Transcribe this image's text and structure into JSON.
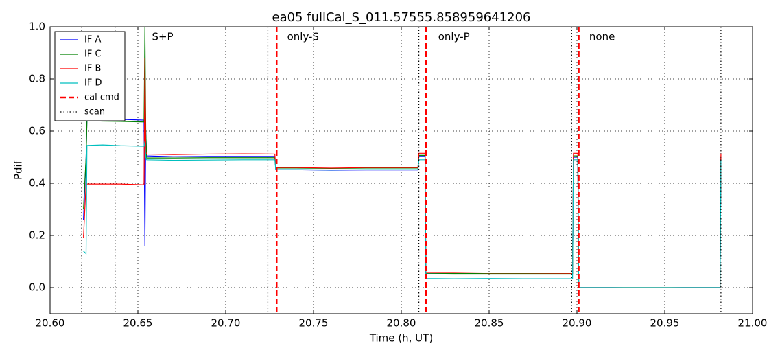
{
  "chart_data": {
    "type": "line",
    "title": "ea05 fullCal_S_011.57555.858959641206",
    "xlabel": "Time (h, UT)",
    "ylabel": "Pdif",
    "xlim": [
      20.6,
      21.0
    ],
    "ylim": [
      -0.1,
      1.0
    ],
    "xticks": [
      {
        "value": 20.6,
        "label": "20.60"
      },
      {
        "value": 20.65,
        "label": "20.65"
      },
      {
        "value": 20.7,
        "label": "20.70"
      },
      {
        "value": 20.75,
        "label": "20.75"
      },
      {
        "value": 20.8,
        "label": "20.80"
      },
      {
        "value": 20.85,
        "label": "20.85"
      },
      {
        "value": 20.9,
        "label": "20.90"
      },
      {
        "value": 20.95,
        "label": "20.95"
      },
      {
        "value": 21.0,
        "label": "21.00"
      }
    ],
    "yticks": [
      {
        "value": 0,
        "label": "0.0"
      },
      0.2,
      0.4,
      0.6,
      0.8,
      {
        "value": 1,
        "label": "1.0"
      }
    ],
    "grid": true,
    "legend": "upper left",
    "x": [
      20.619,
      20.6205,
      20.621,
      20.63,
      20.64,
      20.6535,
      20.654,
      20.6545,
      20.655,
      20.67,
      20.69,
      20.71,
      20.728,
      20.7285,
      20.74,
      20.76,
      20.78,
      20.8095,
      20.81,
      20.8135,
      20.814,
      20.83,
      20.85,
      20.87,
      20.8975,
      20.898,
      20.9005,
      20.901,
      20.92,
      20.94,
      20.96,
      20.9815,
      20.982
    ],
    "series": [
      {
        "name": "IF A",
        "color": "#0000ff",
        "values": [
          0.26,
          0.5,
          0.65,
          0.648,
          0.645,
          0.642,
          0.16,
          0.6,
          0.505,
          0.502,
          0.503,
          0.503,
          0.503,
          0.452,
          0.452,
          0.45,
          0.451,
          0.451,
          0.505,
          0.505,
          0.055,
          0.055,
          0.055,
          0.055,
          0.055,
          0.5,
          0.5,
          0.0,
          0.0,
          -0.001,
          0.0,
          0.0,
          0.5
        ]
      },
      {
        "name": "IF C",
        "color": "#008000",
        "values": [
          0.3,
          0.5,
          0.64,
          0.638,
          0.637,
          0.635,
          1.0,
          0.6,
          0.497,
          0.497,
          0.498,
          0.498,
          0.498,
          0.458,
          0.458,
          0.457,
          0.458,
          0.458,
          0.507,
          0.507,
          0.055,
          0.054,
          0.054,
          0.054,
          0.054,
          0.505,
          0.505,
          0.0,
          0.0,
          0.0,
          0.0,
          0.0,
          0.505
        ]
      },
      {
        "name": "IF B",
        "color": "#ff0000",
        "values": [
          0.19,
          0.4,
          0.397,
          0.397,
          0.397,
          0.394,
          0.88,
          0.52,
          0.512,
          0.51,
          0.512,
          0.513,
          0.512,
          0.46,
          0.46,
          0.458,
          0.46,
          0.46,
          0.515,
          0.515,
          0.058,
          0.058,
          0.056,
          0.056,
          0.055,
          0.515,
          0.515,
          0.0,
          0.0,
          0.0,
          0.0,
          0.0,
          0.515
        ]
      },
      {
        "name": "IF D",
        "color": "#00bfbf",
        "values": [
          0.14,
          0.13,
          0.545,
          0.547,
          0.544,
          0.542,
          0.56,
          0.5,
          0.49,
          0.488,
          0.489,
          0.49,
          0.49,
          0.452,
          0.452,
          0.451,
          0.452,
          0.452,
          0.49,
          0.49,
          0.035,
          0.034,
          0.035,
          0.034,
          0.034,
          0.49,
          0.49,
          0.0,
          0.0,
          0.0,
          0.0,
          0.0,
          0.49
        ]
      }
    ],
    "vlines": [
      {
        "name": "cal cmd",
        "color": "#ff0000",
        "style": "dashed",
        "x": [
          20.729,
          20.814,
          20.901
        ]
      },
      {
        "name": "scan",
        "color": "#000000",
        "style": "dotted",
        "x": [
          20.618,
          20.637,
          20.724,
          20.81,
          20.897,
          20.982
        ]
      }
    ],
    "annotations": [
      {
        "text": "S+P",
        "x": 20.658,
        "y": 0.96,
        "color": "#ff0000"
      },
      {
        "text": "only-S",
        "x": 20.735,
        "y": 0.96,
        "color": "#ff0000"
      },
      {
        "text": "only-P",
        "x": 20.821,
        "y": 0.96,
        "color": "#ff0000"
      },
      {
        "text": "none",
        "x": 20.907,
        "y": 0.96,
        "color": "#ff0000"
      }
    ]
  }
}
